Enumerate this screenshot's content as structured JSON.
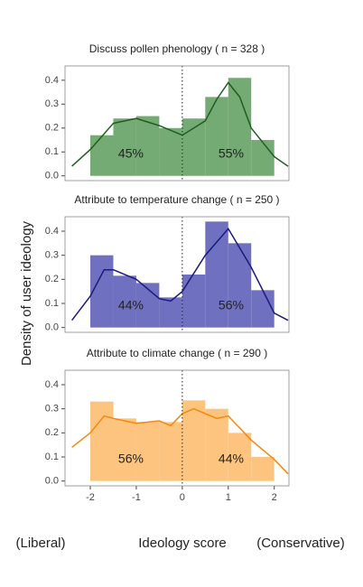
{
  "figure": {
    "y_label": "Density of user ideology",
    "x_label": "Ideology score",
    "left_note": "(Liberal)",
    "right_note": "(Conservative)"
  },
  "chart_data": [
    {
      "type": "histogram",
      "title": "Discuss pollen phenology ( n = 328 )",
      "bins": [
        -2,
        -1.5,
        -1,
        -0.5,
        0,
        0.5,
        1,
        1.5,
        2
      ],
      "values": [
        0.17,
        0.24,
        0.25,
        0.2,
        0.24,
        0.33,
        0.41,
        0.15
      ],
      "color": "#74aa74",
      "curve_color": "#1e5e1e",
      "curve": {
        "x": [
          -2.4,
          -2,
          -1.5,
          -1,
          -0.5,
          0,
          0.5,
          0.75,
          1,
          1.25,
          1.5,
          2,
          2.3
        ],
        "y": [
          0.04,
          0.11,
          0.22,
          0.24,
          0.21,
          0.17,
          0.23,
          0.32,
          0.39,
          0.33,
          0.2,
          0.08,
          0.04
        ]
      },
      "shares": {
        "values": [
          45,
          55
        ],
        "value_labels": [
          "45%",
          "55%"
        ]
      },
      "vline": 0,
      "xlim": [
        -2.55,
        2.32
      ],
      "ylim": [
        -0.02,
        0.46
      ],
      "yticks": [
        {
          "value": 0,
          "label": "0.0"
        },
        0.1,
        0.2,
        0.3,
        0.4
      ]
    },
    {
      "type": "histogram",
      "title": "Attribute to temperature change ( n = 250 )",
      "bins": [
        -2,
        -1.5,
        -1,
        -0.5,
        0,
        0.5,
        1,
        1.5,
        2
      ],
      "values": [
        0.3,
        0.215,
        0.185,
        0.125,
        0.22,
        0.44,
        0.35,
        0.155
      ],
      "color": "#7070c0",
      "curve_color": "#1a1a80",
      "curve": {
        "x": [
          -2.4,
          -2,
          -1.7,
          -1.5,
          -1,
          -0.5,
          -0.25,
          0,
          0.5,
          1,
          1.5,
          2,
          2.3
        ],
        "y": [
          0.03,
          0.13,
          0.24,
          0.24,
          0.2,
          0.12,
          0.11,
          0.15,
          0.3,
          0.41,
          0.25,
          0.06,
          0.03
        ]
      },
      "shares": {
        "values": [
          44,
          56
        ],
        "value_labels": [
          "44%",
          "56%"
        ]
      },
      "vline": 0,
      "xlim": [
        -2.55,
        2.32
      ],
      "ylim": [
        -0.02,
        0.46
      ],
      "yticks": [
        {
          "value": 0,
          "label": "0.0"
        },
        0.1,
        0.2,
        0.3,
        0.4
      ]
    },
    {
      "type": "histogram",
      "title": "Attribute to climate change ( n = 290 )",
      "bins": [
        -2,
        -1.5,
        -1,
        -0.5,
        0,
        0.5,
        1,
        1.5,
        2
      ],
      "values": [
        0.33,
        0.26,
        0.245,
        0.245,
        0.335,
        0.3,
        0.2,
        0.1
      ],
      "color": "#fdc47f",
      "curve_color": "#f5880c",
      "curve": {
        "x": [
          -2.4,
          -2,
          -1.7,
          -1.5,
          -1,
          -0.5,
          -0.25,
          0,
          0.25,
          0.5,
          0.75,
          1,
          1.5,
          2,
          2.3
        ],
        "y": [
          0.14,
          0.2,
          0.27,
          0.26,
          0.24,
          0.25,
          0.23,
          0.28,
          0.3,
          0.28,
          0.26,
          0.27,
          0.17,
          0.09,
          0.03
        ]
      },
      "shares": {
        "values": [
          56,
          44
        ],
        "value_labels": [
          "56%",
          "44%"
        ]
      },
      "vline": 0,
      "xlim": [
        -2.55,
        2.32
      ],
      "ylim": [
        -0.02,
        0.46
      ],
      "yticks": [
        {
          "value": 0,
          "label": "0.0"
        },
        0.1,
        0.2,
        0.3,
        0.4
      ],
      "xticks": [
        -2,
        -1,
        0,
        1,
        2
      ]
    }
  ]
}
